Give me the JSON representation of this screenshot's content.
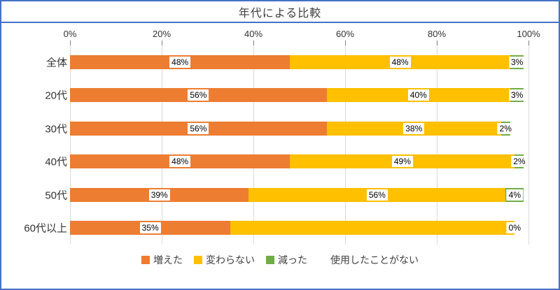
{
  "title": "年代による比較",
  "x_axis": {
    "tick_labels": [
      "0%",
      "20%",
      "40%",
      "60%",
      "80%",
      "100%"
    ]
  },
  "legend": {
    "items": [
      {
        "label": "増えた",
        "color": "#ED7D31"
      },
      {
        "label": "変わらない",
        "color": "#FFC000"
      },
      {
        "label": "減った",
        "color": "#70AD47"
      },
      {
        "label": "使用したことがない",
        "color": "#FFFFFF"
      }
    ]
  },
  "colors": {
    "border": "#4472C4",
    "gridline": "#D9D9D9",
    "tick": "#7F7F7F",
    "title_text": "#404040",
    "label_text": "#000000"
  },
  "chart_data": {
    "type": "bar",
    "orientation": "horizontal",
    "stacked": true,
    "title": "年代による比較",
    "categories": [
      "全体",
      "20代",
      "30代",
      "40代",
      "50代",
      "60代以上"
    ],
    "series": [
      {
        "name": "増えた",
        "color": "#ED7D31",
        "values": [
          48,
          56,
          56,
          48,
          39,
          35
        ]
      },
      {
        "name": "変わらない",
        "color": "#FFC000",
        "values": [
          48,
          40,
          38,
          49,
          56,
          62
        ]
      },
      {
        "name": "減った",
        "color": "#70AD47",
        "values": [
          3,
          3,
          2,
          2,
          4,
          0
        ]
      },
      {
        "name": "使用したことがない",
        "color": "#FFFFFF",
        "values": [
          1,
          1,
          4,
          1,
          1,
          3
        ]
      }
    ],
    "data_labels": [
      [
        "48%",
        "48%",
        "3%",
        ""
      ],
      [
        "56%",
        "40%",
        "3%",
        ""
      ],
      [
        "56%",
        "38%",
        "2%",
        ""
      ],
      [
        "48%",
        "49%",
        "2%",
        ""
      ],
      [
        "39%",
        "56%",
        "4%",
        ""
      ],
      [
        "35%",
        "",
        "0%",
        ""
      ]
    ],
    "xlim": [
      0,
      100
    ],
    "x_tick_labels": [
      "0%",
      "20%",
      "40%",
      "60%",
      "80%",
      "100%"
    ],
    "legend_position": "bottom",
    "gridlines": "vertical"
  }
}
